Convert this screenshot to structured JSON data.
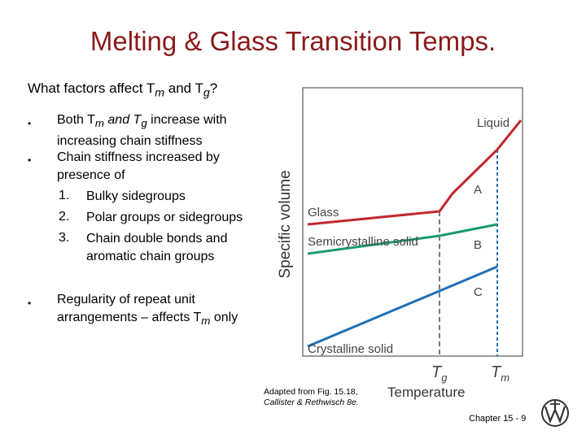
{
  "title": "Melting & Glass Transition Temps.",
  "question": {
    "prefix": "What factors affect T",
    "m_sub": "m",
    "mid": " and T",
    "g_sub": "g",
    "suffix": "?"
  },
  "bullets": {
    "b1": {
      "p1": "Both T",
      "m": "m",
      "p2": " and T",
      "g": "g",
      "p3": " increase with",
      "line2": "increasing chain stiffness"
    },
    "b2": {
      "line1": "Chain stiffness increased by",
      "line2": "presence of"
    },
    "items": [
      {
        "num": "1.",
        "text": "Bulky sidegroups"
      },
      {
        "num": "2.",
        "text": "Polar groups or sidegroups"
      },
      {
        "num": "3.",
        "text": "Chain double bonds and",
        "text2": "aromatic chain groups"
      }
    ],
    "b3": {
      "line1": "Regularity of repeat unit",
      "line2a": "arrangements – affects T",
      "m": "m",
      "line2b": " only"
    }
  },
  "diagram": {
    "y_label": "Specific volume",
    "x_label": "Temperature",
    "tg_label": "T",
    "tg_sub": "g",
    "tm_label": "T",
    "tm_sub": "m",
    "labels": {
      "liquid": "Liquid",
      "glass": "Glass",
      "semicrystalline": "Semicrystalline solid",
      "crystalline": "Crystalline solid",
      "a": "A",
      "b": "B",
      "c": "C"
    },
    "colors": {
      "glass": "#c0282d",
      "semi": "#1a9a6b",
      "crystal": "#1f6fb8",
      "tm_line": "#1f6fb8",
      "frame": "#7a7a7a"
    }
  },
  "caption": {
    "line1": "Adapted from Fig. 15.18,",
    "line2": "Callister & Rethwisch 8e."
  },
  "footer": "Chapter 15 -  9"
}
